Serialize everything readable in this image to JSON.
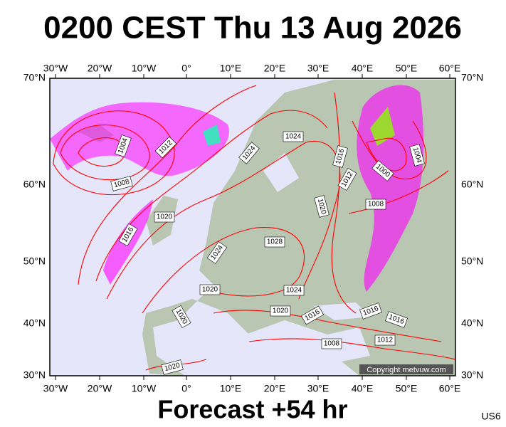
{
  "title": "0200 CEST Thu 13 Aug 2026",
  "footer": "Forecast +54 hr",
  "code": "US6",
  "copyright": "Copyright metvuw.com",
  "lon_labels": [
    "30°W",
    "20°W",
    "10°W",
    "0°",
    "10°E",
    "20°E",
    "30°E",
    "40°E",
    "50°E",
    "60°E"
  ],
  "lat_labels": [
    "70°N",
    "60°N",
    "50°N",
    "40°N",
    "30°N"
  ],
  "isobars": [
    "1004",
    "1012",
    "1008",
    "1020",
    "1016",
    "1024",
    "1024",
    "1024",
    "1016",
    "1012",
    "1000",
    "1004",
    "1008",
    "1020",
    "1028",
    "1020",
    "1024",
    "1020",
    "1020",
    "1016",
    "1016",
    "1016",
    "1012",
    "1008",
    "1020"
  ]
}
